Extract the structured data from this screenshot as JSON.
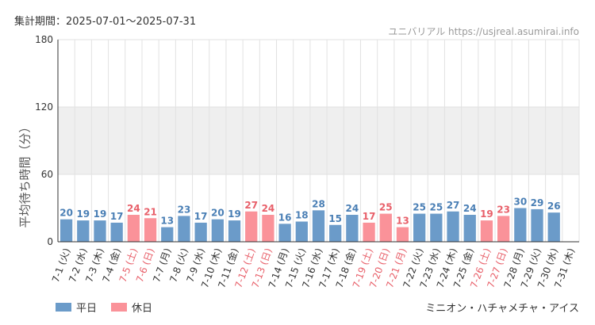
{
  "period_label": "集計期間：2025-07-01〜2025-07-31",
  "credit": "ユニバリアル  https://usjreal.asumirai.info",
  "footer_name": "ミニオン・ハチャメチャ・アイス",
  "legend": {
    "weekday": {
      "label": "平日",
      "color": "#6b9bc9"
    },
    "holiday": {
      "label": "休日",
      "color": "#fa9299"
    }
  },
  "colors": {
    "weekday_text": "#4a7fb5",
    "holiday_text": "#e8606a",
    "band": "#efefef",
    "grid": "#e2e2e2",
    "axis": "#333333"
  },
  "chart_data": {
    "type": "bar",
    "title": "",
    "xlabel": "",
    "ylabel": "平均待ち時間（分）",
    "ylim": [
      0,
      180
    ],
    "yticks": [
      0,
      60,
      120,
      180
    ],
    "shaded_band": [
      60,
      120
    ],
    "categories": [
      "7-1 (火)",
      "7-2 (水)",
      "7-3 (木)",
      "7-4 (金)",
      "7-5 (土)",
      "7-6 (日)",
      "7-7 (月)",
      "7-8 (火)",
      "7-9 (水)",
      "7-10 (木)",
      "7-11 (金)",
      "7-12 (土)",
      "7-13 (日)",
      "7-14 (月)",
      "7-15 (火)",
      "7-16 (水)",
      "7-17 (木)",
      "7-18 (金)",
      "7-19 (土)",
      "7-20 (日)",
      "7-21 (月)",
      "7-22 (火)",
      "7-23 (水)",
      "7-24 (木)",
      "7-25 (金)",
      "7-26 (土)",
      "7-27 (日)",
      "7-28 (月)",
      "7-29 (火)",
      "7-30 (水)",
      "7-31 (木)"
    ],
    "values": [
      20,
      19,
      19,
      17,
      24,
      21,
      13,
      23,
      17,
      20,
      19,
      27,
      24,
      16,
      18,
      28,
      15,
      24,
      17,
      25,
      13,
      25,
      25,
      27,
      24,
      19,
      23,
      30,
      29,
      26,
      null
    ],
    "holiday": [
      false,
      false,
      false,
      false,
      true,
      true,
      false,
      false,
      false,
      false,
      false,
      true,
      true,
      false,
      false,
      false,
      false,
      false,
      true,
      true,
      true,
      false,
      false,
      false,
      false,
      true,
      true,
      false,
      false,
      false,
      false
    ],
    "series": [
      {
        "name": "平日"
      },
      {
        "name": "休日"
      }
    ]
  }
}
